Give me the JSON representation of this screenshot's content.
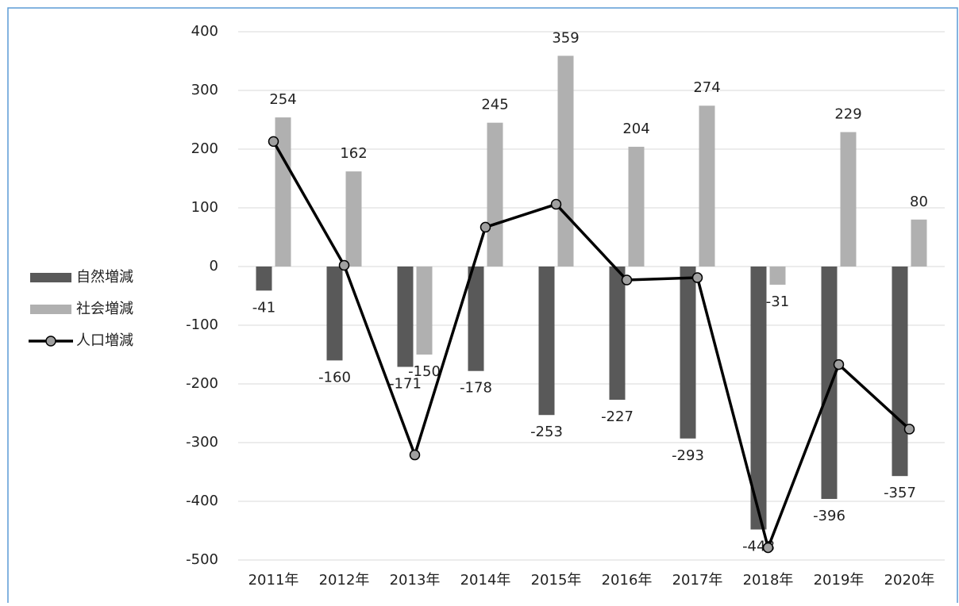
{
  "chart_data": {
    "type": "bar_line",
    "categories": [
      "2011年",
      "2012年",
      "2013年",
      "2014年",
      "2015年",
      "2016年",
      "2017年",
      "2018年",
      "2019年",
      "2020年"
    ],
    "series": [
      {
        "name": "自然増減",
        "type": "bar",
        "color": "#595959",
        "values": [
          -41,
          -160,
          -171,
          -178,
          -253,
          -227,
          -293,
          -448,
          -396,
          -357
        ]
      },
      {
        "name": "社会増減",
        "type": "bar",
        "color": "#b0b0b0",
        "values": [
          254,
          162,
          -150,
          245,
          359,
          204,
          274,
          -31,
          229,
          80
        ]
      },
      {
        "name": "人口増減",
        "type": "line",
        "color": "#000000",
        "marker_color": "#a0a0a0",
        "values": [
          213,
          2,
          -321,
          67,
          106,
          -23,
          -19,
          -479,
          -167,
          -277
        ]
      }
    ],
    "ylim": [
      -500,
      400
    ],
    "yticks": [
      -500,
      -400,
      -300,
      -200,
      -100,
      0,
      100,
      200,
      300,
      400
    ],
    "grid": true,
    "legend": "left"
  }
}
